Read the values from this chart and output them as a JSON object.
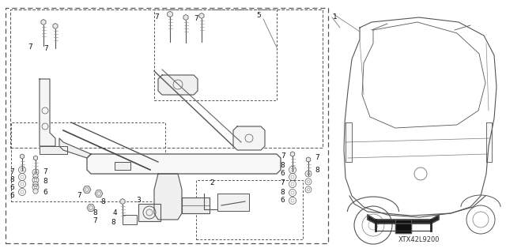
{
  "background_color": "#ffffff",
  "diagram_code": "XTX42L9200",
  "line_color": "#555555",
  "text_color": "#111111",
  "label_fontsize": 6.5,
  "code_fontsize": 6.0
}
